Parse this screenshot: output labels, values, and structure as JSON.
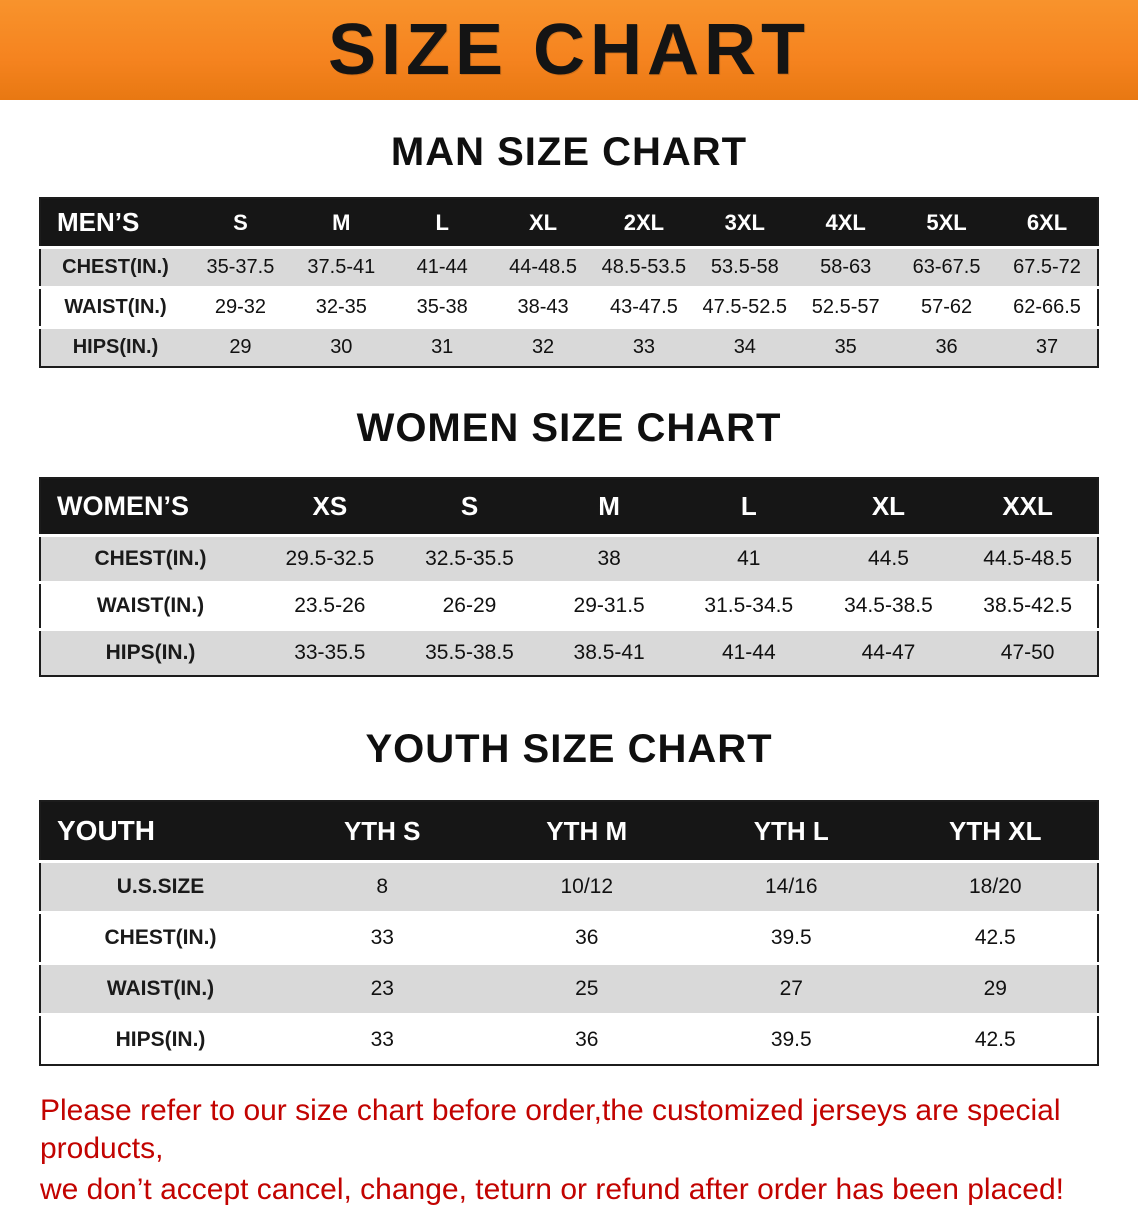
{
  "banner": {
    "title": "SIZE CHART"
  },
  "colors": {
    "banner_bg": "#f5831f",
    "header_bg": "#161616",
    "row_alt": "#d9d9d9",
    "note_red": "#c20300"
  },
  "sections": [
    {
      "id": "men",
      "heading": "MAN SIZE CHART",
      "corner": "MEN’S",
      "columns": [
        "S",
        "M",
        "L",
        "XL",
        "2XL",
        "3XL",
        "4XL",
        "5XL",
        "6XL"
      ],
      "rows": [
        {
          "label": "CHEST(IN.)",
          "values": [
            "35-37.5",
            "37.5-41",
            "41-44",
            "44-48.5",
            "48.5-53.5",
            "53.5-58",
            "58-63",
            "63-67.5",
            "67.5-72"
          ]
        },
        {
          "label": "WAIST(IN.)",
          "values": [
            "29-32",
            "32-35",
            "35-38",
            "38-43",
            "43-47.5",
            "47.5-52.5",
            "52.5-57",
            "57-62",
            "62-66.5"
          ]
        },
        {
          "label": "HIPS(IN.)",
          "values": [
            "29",
            "30",
            "31",
            "32",
            "33",
            "34",
            "35",
            "36",
            "37"
          ]
        }
      ]
    },
    {
      "id": "women",
      "heading": "WOMEN SIZE CHART",
      "corner": "WOMEN’S",
      "columns": [
        "XS",
        "S",
        "M",
        "L",
        "XL",
        "XXL"
      ],
      "rows": [
        {
          "label": "CHEST(IN.)",
          "values": [
            "29.5-32.5",
            "32.5-35.5",
            "38",
            "41",
            "44.5",
            "44.5-48.5"
          ]
        },
        {
          "label": "WAIST(IN.)",
          "values": [
            "23.5-26",
            "26-29",
            "29-31.5",
            "31.5-34.5",
            "34.5-38.5",
            "38.5-42.5"
          ]
        },
        {
          "label": "HIPS(IN.)",
          "values": [
            "33-35.5",
            "35.5-38.5",
            "38.5-41",
            "41-44",
            "44-47",
            "47-50"
          ]
        }
      ]
    },
    {
      "id": "youth",
      "heading": "YOUTH SIZE CHART",
      "corner": "YOUTH",
      "columns": [
        "YTH S",
        "YTH M",
        "YTH L",
        "YTH XL"
      ],
      "rows": [
        {
          "label": "U.S.SIZE",
          "values": [
            "8",
            "10/12",
            "14/16",
            "18/20"
          ]
        },
        {
          "label": "CHEST(IN.)",
          "values": [
            "33",
            "36",
            "39.5",
            "42.5"
          ]
        },
        {
          "label": "WAIST(IN.)",
          "values": [
            "23",
            "25",
            "27",
            "29"
          ]
        },
        {
          "label": "HIPS(IN.)",
          "values": [
            "33",
            "36",
            "39.5",
            "42.5"
          ]
        }
      ]
    }
  ],
  "note": {
    "line1": "Please refer to our size chart before order,the customized jerseys are special products,",
    "line2": "we don’t accept cancel, change, teturn or refund after order has been placed!"
  }
}
